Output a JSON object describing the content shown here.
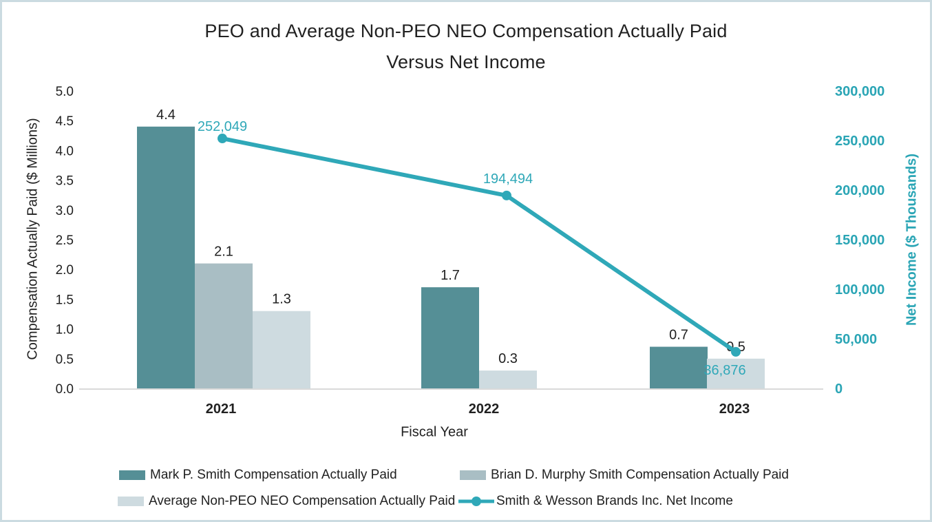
{
  "title": {
    "line1": "PEO and Average Non-PEO NEO Compensation Actually Paid",
    "line2": "Versus Net Income"
  },
  "colors": {
    "text": "#212121",
    "right_axis_text": "#2aa5b5",
    "axis_line": "#d9d9d9",
    "frame_border": "#cbdbe1",
    "bar_peo": "#558f96",
    "bar_former_peo": "#a9bec4",
    "bar_avg_neo": "#cedbe0",
    "line_net_income": "#2fa8b8"
  },
  "chart_data": {
    "type": "combo",
    "categories": [
      "2021",
      "2022",
      "2023"
    ],
    "series": [
      {
        "name": "Mark P. Smith Compensation Actually Paid",
        "type": "bar",
        "axis": "left",
        "color": "#558f96",
        "values": [
          4.4,
          1.7,
          0.7
        ],
        "labels": [
          "4.4",
          "1.7",
          "0.7"
        ]
      },
      {
        "name": "Brian D. Murphy Smith Compensation Actually Paid",
        "type": "bar",
        "axis": "left",
        "color": "#a9bec4",
        "values": [
          2.1,
          null,
          null
        ],
        "labels": [
          "2.1",
          null,
          null
        ]
      },
      {
        "name": "Average Non-PEO NEO Compensation Actually Paid",
        "type": "bar",
        "axis": "left",
        "color": "#cedbe0",
        "values": [
          1.3,
          0.3,
          0.5
        ],
        "labels": [
          "1.3",
          "0.3",
          "0.5"
        ]
      },
      {
        "name": "Smith & Wesson Brands Inc. Net Income",
        "type": "line",
        "axis": "right",
        "color": "#2fa8b8",
        "values": [
          252049,
          194494,
          36876
        ],
        "labels": [
          "252,049",
          "194,494",
          "36,876"
        ]
      }
    ],
    "left_axis": {
      "label": "Compensation Actually Paid ($ Millions)",
      "min": 0,
      "max": 5,
      "step": 0.5,
      "tick_labels": [
        "0.0",
        "0.5",
        "1.0",
        "1.5",
        "2.0",
        "2.5",
        "3.0",
        "3.5",
        "4.0",
        "4.5",
        "5.0"
      ]
    },
    "right_axis": {
      "label": "Net Income ($ Thousands)",
      "min": 0,
      "max": 300000,
      "step": 50000,
      "tick_labels": [
        "0",
        "50,000",
        "100,000",
        "150,000",
        "200,000",
        "250,000",
        "300,000"
      ]
    },
    "x_axis": {
      "label": "Fiscal Year"
    },
    "legend_position": "bottom",
    "gridlines": false
  }
}
